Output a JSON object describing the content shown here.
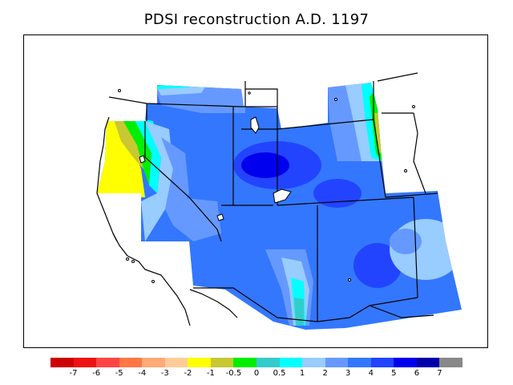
{
  "title": "PDSI reconstruction A.D. 1197",
  "colors": {
    "frame": "#000000",
    "background": "#ffffff",
    "lines": "#000000"
  },
  "legend": {
    "bins": [
      {
        "color": "#cc0000"
      },
      {
        "color": "#ee1111"
      },
      {
        "color": "#ff4444"
      },
      {
        "color": "#ff7744"
      },
      {
        "color": "#ffaa77"
      },
      {
        "color": "#ffcc99"
      },
      {
        "color": "#ffff00"
      },
      {
        "color": "#c8c832"
      },
      {
        "color": "#00ee00"
      },
      {
        "color": "#33cccc"
      },
      {
        "color": "#00ffff"
      },
      {
        "color": "#99ccff"
      },
      {
        "color": "#6699ff"
      },
      {
        "color": "#3377ff"
      },
      {
        "color": "#2244ff"
      },
      {
        "color": "#0000ee"
      },
      {
        "color": "#0000aa"
      },
      {
        "color": "#888888"
      }
    ],
    "labels": [
      "-7",
      "-6",
      "-5",
      "-4",
      "-3",
      "-2",
      "-1",
      "-0.5",
      "0",
      "0.5",
      "1",
      "2",
      "3",
      "4",
      "5",
      "6",
      "7"
    ]
  }
}
